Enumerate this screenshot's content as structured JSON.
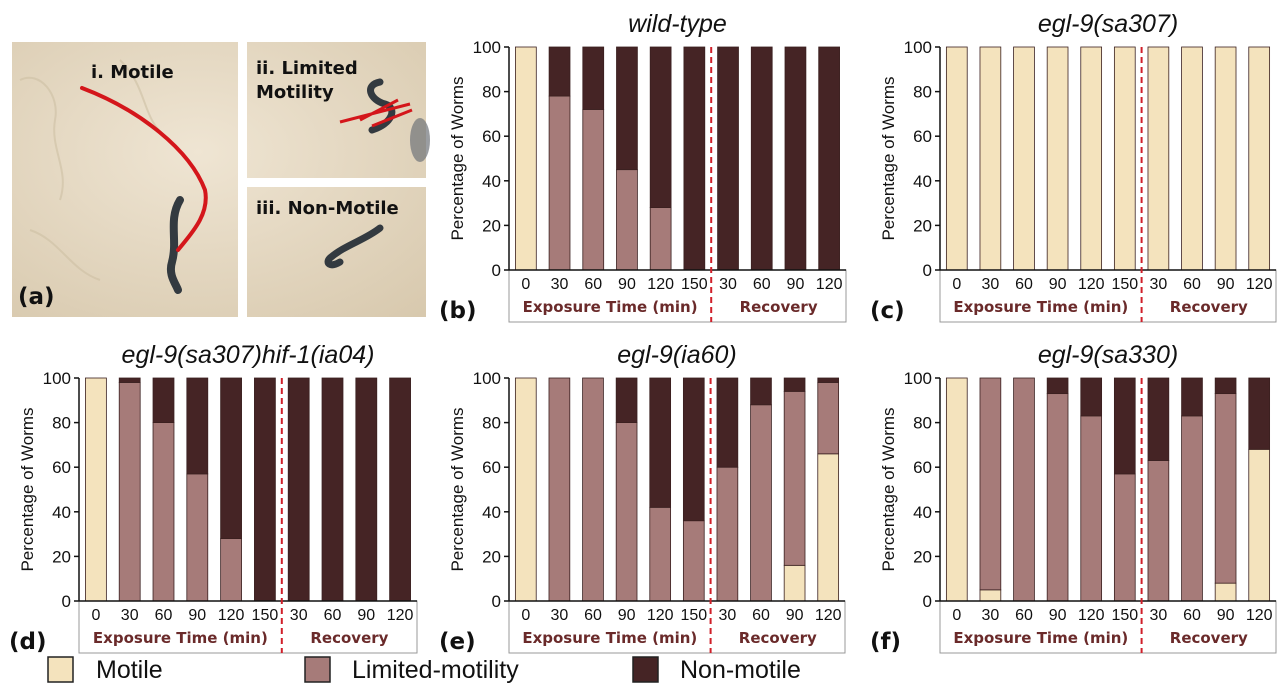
{
  "colors": {
    "motile": "#f4e3bd",
    "limited": "#a67b79",
    "nonmotile": "#452425",
    "divider": "#d0202a",
    "section_text": "#6a2a2a",
    "trace": "#d4161b"
  },
  "photo": {
    "panel_label": "(a)",
    "label_motile": "i. Motile",
    "label_limited_1": "ii. Limited",
    "label_limited_2": "Motility",
    "label_nonmotile": "iii. Non-Motile"
  },
  "legend": [
    {
      "label": "Motile",
      "color": "#f4e3bd"
    },
    {
      "label": "Limited-motility",
      "color": "#a67b79"
    },
    {
      "label": "Non-motile",
      "color": "#452425"
    }
  ],
  "chart_data": [
    {
      "panel": "(b)",
      "title": "wild-type",
      "type": "bar",
      "stacked": true,
      "ylabel": "Percentage of Worms",
      "ylim": [
        0,
        100
      ],
      "yticks": [
        0,
        20,
        40,
        60,
        80,
        100
      ],
      "categories": [
        "0",
        "30",
        "60",
        "90",
        "120",
        "150",
        "30",
        "60",
        "90",
        "120"
      ],
      "section_labels": [
        "Exposure Time (min)",
        "Recovery"
      ],
      "series": [
        {
          "name": "Motile",
          "values": [
            100,
            0,
            0,
            0,
            0,
            0,
            0,
            0,
            0,
            0
          ]
        },
        {
          "name": "Limited-motility",
          "values": [
            0,
            78,
            72,
            45,
            28,
            0,
            0,
            0,
            0,
            0
          ]
        },
        {
          "name": "Non-motile",
          "values": [
            0,
            22,
            28,
            55,
            72,
            100,
            100,
            100,
            100,
            100
          ]
        }
      ]
    },
    {
      "panel": "(c)",
      "title": "egl-9(sa307)",
      "type": "bar",
      "stacked": true,
      "ylabel": "Percentage of Worms",
      "ylim": [
        0,
        100
      ],
      "yticks": [
        0,
        20,
        40,
        60,
        80,
        100
      ],
      "categories": [
        "0",
        "30",
        "60",
        "90",
        "120",
        "150",
        "30",
        "60",
        "90",
        "120"
      ],
      "section_labels": [
        "Exposure Time (min)",
        "Recovery"
      ],
      "series": [
        {
          "name": "Motile",
          "values": [
            100,
            100,
            100,
            100,
            100,
            100,
            100,
            100,
            100,
            100
          ]
        },
        {
          "name": "Limited-motility",
          "values": [
            0,
            0,
            0,
            0,
            0,
            0,
            0,
            0,
            0,
            0
          ]
        },
        {
          "name": "Non-motile",
          "values": [
            0,
            0,
            0,
            0,
            0,
            0,
            0,
            0,
            0,
            0
          ]
        }
      ]
    },
    {
      "panel": "(d)",
      "title": "egl-9(sa307)hif-1(ia04)",
      "type": "bar",
      "stacked": true,
      "ylabel": "Percentage of Worms",
      "ylim": [
        0,
        100
      ],
      "yticks": [
        0,
        20,
        40,
        60,
        80,
        100
      ],
      "categories": [
        "0",
        "30",
        "60",
        "90",
        "120",
        "150",
        "30",
        "60",
        "90",
        "120"
      ],
      "section_labels": [
        "Exposure Time (min)",
        "Recovery"
      ],
      "series": [
        {
          "name": "Motile",
          "values": [
            100,
            0,
            0,
            0,
            0,
            0,
            0,
            0,
            0,
            0
          ]
        },
        {
          "name": "Limited-motility",
          "values": [
            0,
            98,
            80,
            57,
            28,
            0,
            0,
            0,
            0,
            0
          ]
        },
        {
          "name": "Non-motile",
          "values": [
            0,
            2,
            20,
            43,
            72,
            100,
            100,
            100,
            100,
            100
          ]
        }
      ]
    },
    {
      "panel": "(e)",
      "title": "egl-9(ia60)",
      "type": "bar",
      "stacked": true,
      "ylabel": "Percentage of Worms",
      "ylim": [
        0,
        100
      ],
      "yticks": [
        0,
        20,
        40,
        60,
        80,
        100
      ],
      "categories": [
        "0",
        "30",
        "60",
        "90",
        "120",
        "150",
        "30",
        "60",
        "90",
        "120"
      ],
      "section_labels": [
        "Exposure Time (min)",
        "Recovery"
      ],
      "series": [
        {
          "name": "Motile",
          "values": [
            100,
            0,
            0,
            0,
            0,
            0,
            0,
            0,
            16,
            66
          ]
        },
        {
          "name": "Limited-motility",
          "values": [
            0,
            100,
            100,
            80,
            42,
            36,
            60,
            88,
            78,
            32
          ]
        },
        {
          "name": "Non-motile",
          "values": [
            0,
            0,
            0,
            20,
            58,
            64,
            40,
            12,
            6,
            2
          ]
        }
      ]
    },
    {
      "panel": "(f)",
      "title": "egl-9(sa330)",
      "type": "bar",
      "stacked": true,
      "ylabel": "Percentage of Worms",
      "ylim": [
        0,
        100
      ],
      "yticks": [
        0,
        20,
        40,
        60,
        80,
        100
      ],
      "categories": [
        "0",
        "30",
        "60",
        "90",
        "120",
        "150",
        "30",
        "60",
        "90",
        "120"
      ],
      "section_labels": [
        "Exposure Time (min)",
        "Recovery"
      ],
      "series": [
        {
          "name": "Motile",
          "values": [
            100,
            5,
            0,
            0,
            0,
            0,
            0,
            0,
            8,
            68
          ]
        },
        {
          "name": "Limited-motility",
          "values": [
            0,
            95,
            100,
            93,
            83,
            57,
            63,
            83,
            85,
            0
          ]
        },
        {
          "name": "Non-motile",
          "values": [
            0,
            0,
            0,
            7,
            17,
            43,
            37,
            17,
            7,
            32
          ]
        }
      ]
    }
  ]
}
